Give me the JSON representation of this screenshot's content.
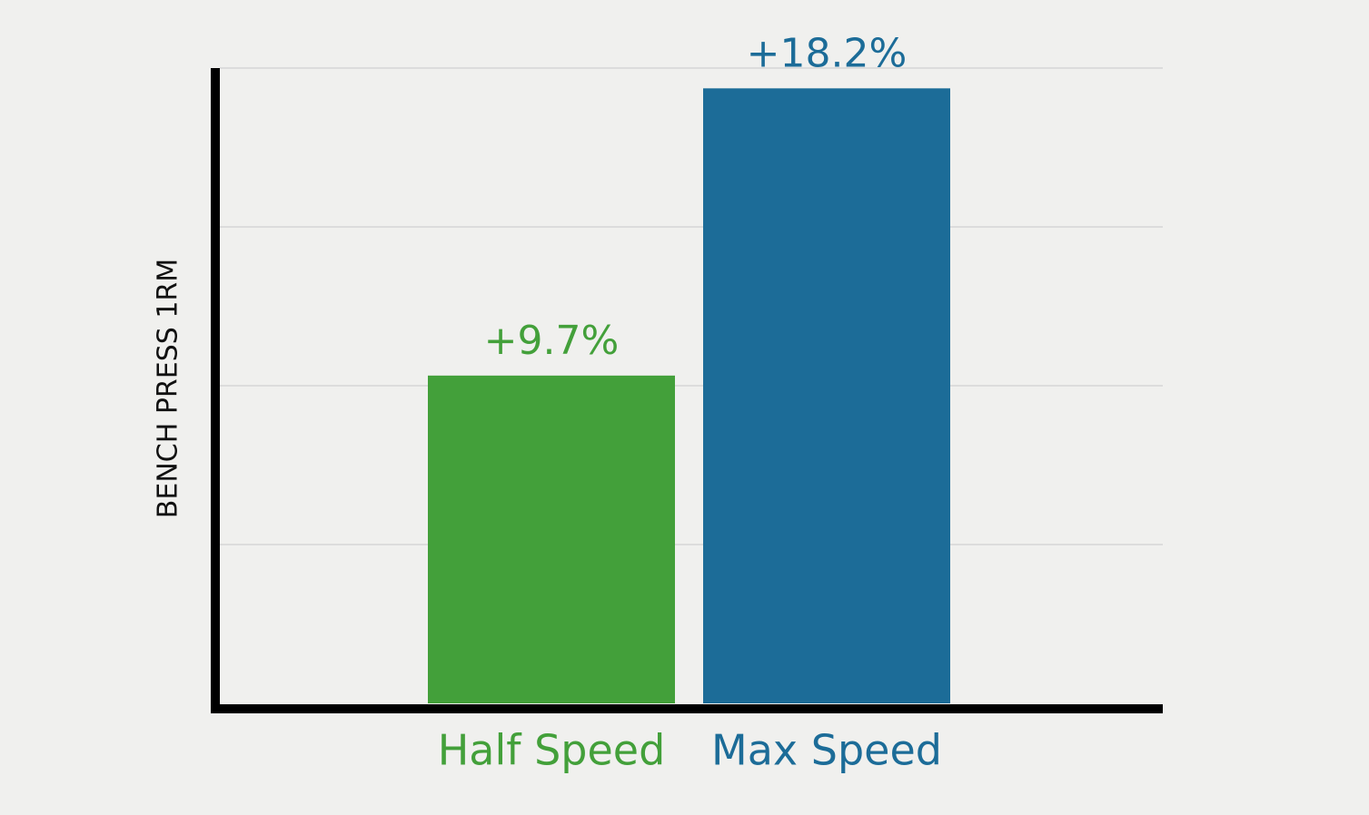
{
  "chart_data": {
    "type": "bar",
    "y_label": "BENCH PRESS 1RM",
    "categories": [
      "Half Speed",
      "Max Speed"
    ],
    "values": [
      9.7,
      18.2
    ],
    "value_labels": [
      "+9.7%",
      "+18.2%"
    ],
    "colors": [
      "#43a03a",
      "#1c6c98"
    ],
    "ylim": [
      0,
      18.8
    ],
    "yticks": [
      4.7,
      9.4,
      14.1,
      18.8
    ],
    "grid": true
  }
}
